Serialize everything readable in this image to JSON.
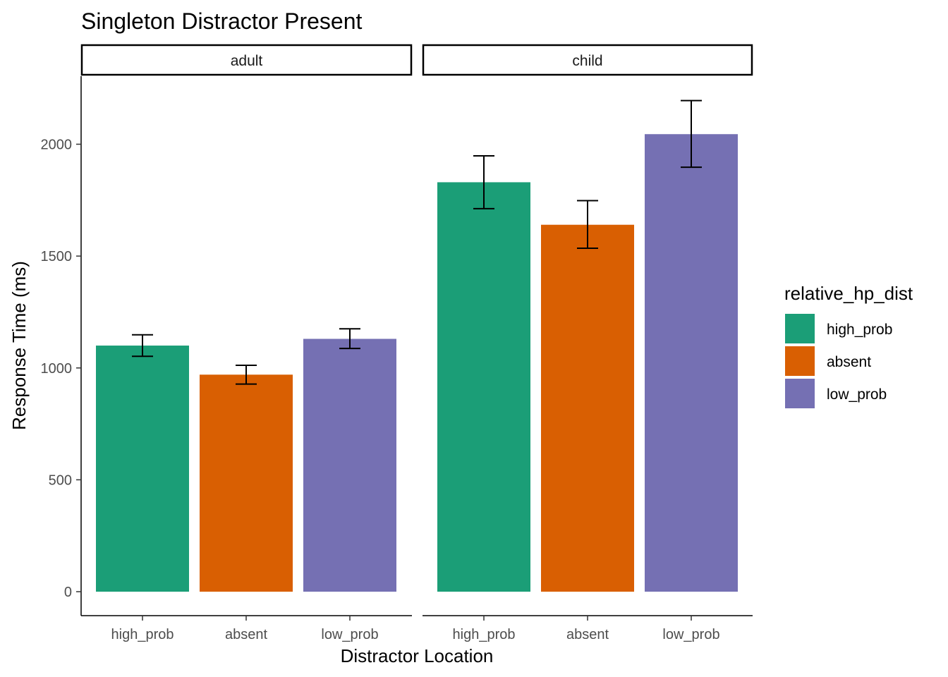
{
  "chart_data": {
    "type": "bar",
    "title": "Singleton Distractor Present",
    "xlabel": "Distractor Location",
    "ylabel": "Response Time (ms)",
    "ylim": [
      0,
      2300
    ],
    "yticks": [
      0,
      500,
      1000,
      1500,
      2000
    ],
    "grid": false,
    "categories": [
      "high_prob",
      "absent",
      "low_prob"
    ],
    "colors": {
      "high_prob": "#1B9E77",
      "absent": "#D95F02",
      "low_prob": "#7570B3"
    },
    "facets": [
      {
        "name": "adult",
        "values": [
          1100,
          970,
          1130
        ],
        "error_low": [
          1052,
          928,
          1087
        ],
        "error_high": [
          1148,
          1012,
          1175
        ]
      },
      {
        "name": "child",
        "values": [
          1830,
          1640,
          2045
        ],
        "error_low": [
          1712,
          1535,
          1897
        ],
        "error_high": [
          1948,
          1748,
          2195
        ]
      }
    ],
    "legend": {
      "title": "relative_hp_dist",
      "position": "right",
      "entries": [
        "high_prob",
        "absent",
        "low_prob"
      ]
    }
  }
}
